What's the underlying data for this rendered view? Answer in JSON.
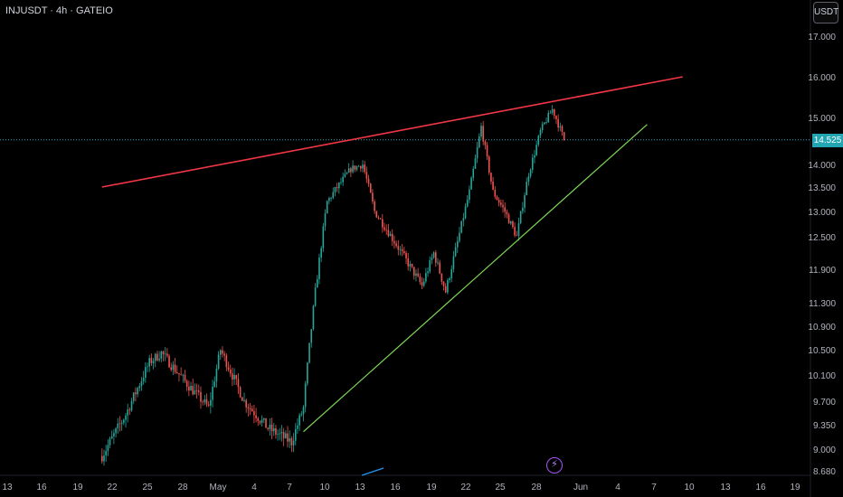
{
  "header": {
    "symbol": "INJUSDT · 4h · GATEIO",
    "unit_button": "USDT"
  },
  "current_price": "14.525",
  "colors": {
    "up": "#26a69a",
    "down": "#ef5350",
    "resistance": "#f23645",
    "support": "#7ed957",
    "price_line": "#22a6b3",
    "alert": "#a855f7",
    "background": "#000000"
  },
  "icons": {
    "alert": "lightning-icon"
  },
  "chart_data": {
    "type": "candlestick",
    "symbol": "INJUSDT",
    "interval": "4h",
    "exchange": "GATEIO",
    "y_ticks": [
      "17.000",
      "16.000",
      "15.000",
      "14.000",
      "13.500",
      "13.000",
      "12.500",
      "11.900",
      "11.300",
      "10.900",
      "10.500",
      "10.100",
      "9.700",
      "9.350",
      "9.000",
      "8.680"
    ],
    "x_ticks": [
      "13",
      "16",
      "19",
      "22",
      "25",
      "28",
      "May",
      "4",
      "7",
      "10",
      "13",
      "16",
      "19",
      "22",
      "25",
      "28",
      "Jun",
      "4",
      "7",
      "10",
      "13",
      "16",
      "19"
    ],
    "last_price": 14.525,
    "price_path": [
      [
        "Apr 21",
        8.9
      ],
      [
        "Apr 23",
        9.5
      ],
      [
        "Apr 25",
        10.3
      ],
      [
        "Apr 26",
        10.45
      ],
      [
        "Apr 28",
        10.0
      ],
      [
        "Apr 30",
        9.6
      ],
      [
        "May 1",
        10.5
      ],
      [
        "May 3",
        9.7
      ],
      [
        "May 5",
        9.3
      ],
      [
        "May 7",
        9.1
      ],
      [
        "May 8",
        9.6
      ],
      [
        "May 9",
        11.5
      ],
      [
        "May 10",
        13.2
      ],
      [
        "May 12",
        13.9
      ],
      [
        "May 13",
        14.0
      ],
      [
        "May 14",
        13.0
      ],
      [
        "May 16",
        12.3
      ],
      [
        "May 18",
        11.6
      ],
      [
        "May 19",
        12.2
      ],
      [
        "May 20",
        11.5
      ],
      [
        "May 21",
        12.4
      ],
      [
        "May 22",
        13.4
      ],
      [
        "May 23",
        14.8
      ],
      [
        "May 24",
        13.4
      ],
      [
        "May 25",
        13.0
      ],
      [
        "May 26",
        12.5
      ],
      [
        "May 27",
        13.8
      ],
      [
        "May 28",
        14.7
      ],
      [
        "May 29",
        15.2
      ],
      [
        "May 30",
        14.525
      ]
    ],
    "resistance_line": {
      "start": [
        "Apr 21",
        13.5
      ],
      "end": [
        "Jun 9",
        16.0
      ]
    },
    "support_line": {
      "start": [
        "May 8",
        9.25
      ],
      "end": [
        "Jun 6",
        14.85
      ]
    }
  }
}
